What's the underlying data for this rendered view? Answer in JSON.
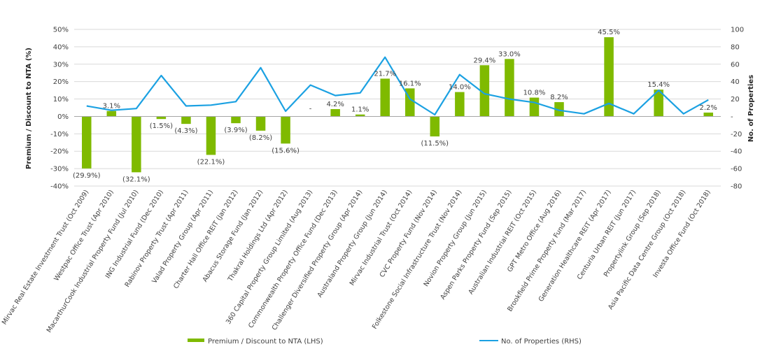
{
  "chart_data": {
    "type": "bar",
    "ylabel": "Premium / Discount to NTA (%)",
    "y2label": "No. of Properties",
    "ylim": [
      -40,
      50
    ],
    "y2lim": [
      -80,
      100
    ],
    "yticks": [
      "50%",
      "40%",
      "30%",
      "20%",
      "10%",
      "0%",
      "-10%",
      "-20%",
      "-30%",
      "-40%"
    ],
    "y2ticks": [
      "100",
      "80",
      "60",
      "40",
      "20",
      "-",
      "-20",
      "-40",
      "-60",
      "-80"
    ],
    "grid": true,
    "legend_position": "bottom",
    "colors": {
      "bar": "#7fba00",
      "line": "#1ba1e2"
    },
    "categories": [
      "Mirvac Real Estate Investment Trust (Oct 2009)",
      "Westpac Office Trust (Apr 2010)",
      "MacarthurCook Industrial Property Fund (Jul 2010)",
      "ING Industrial Fund (Dec 2010)",
      "Rabinov Property Trust (Apr 2011)",
      "Valad Property Group (Apr 2011)",
      "Charter Hall Office REIT (Jan 2012)",
      "Abacus Storage Fund (Jan 2012)",
      "Thakral Holdings Ltd (Apr 2012)",
      "360 Capital Property Group Limited (Aug 2013)",
      "Commonwealth Property Office Fund (Dec 2013)",
      "Challenger Diversified Property Group (Apr 2014)",
      "Australand Property Group (Jun 2014)",
      "Mirvac Industrial Trust (Oct 2014)",
      "CVC Property Fund (Nov 2014)",
      "Folkestone Social Infrastructure Trust (Nov 2014)",
      "Novion Property Group (Jun 2015)",
      "Aspen Parks Property Fund (Sep 2015)",
      "Australian Industrial REIT (Oct 2015)",
      "GPT Metro Office (Aug 2016)",
      "Brookfield Prime Property Fund (Mar 2017)",
      "Generation Healthcare REIT (Apr 2017)",
      "Centuria Urban REIT (Jun 2017)",
      "Propertylink Group (Sep 2018)",
      "Asia Pacific Data Centre Group (Oct 2018)",
      "Investa Office Fund (Oct 2018)"
    ],
    "series": [
      {
        "name": "Premium / Discount to NTA (LHS)",
        "type": "bar",
        "axis": "left",
        "values": [
          -29.9,
          3.1,
          -32.1,
          -1.5,
          -4.3,
          -22.1,
          -3.9,
          -8.2,
          -15.6,
          null,
          4.2,
          1.1,
          21.7,
          16.1,
          -11.5,
          14.0,
          29.4,
          33.0,
          10.8,
          8.2,
          null,
          45.5,
          null,
          15.4,
          null,
          2.2
        ],
        "labels": [
          "(29.9%)",
          "3.1%",
          "(32.1%)",
          "(1.5%)",
          "(4.3%)",
          "(22.1%)",
          "(3.9%)",
          "(8.2%)",
          "(15.6%)",
          "-",
          "4.2%",
          "1.1%",
          "21.7%",
          "16.1%",
          "(11.5%)",
          "14.0%",
          "29.4%",
          "33.0%",
          "10.8%",
          "8.2%",
          "",
          "45.5%",
          "",
          "15.4%",
          "",
          "2.2%"
        ]
      },
      {
        "name": "No. of Properties (RHS)",
        "type": "line",
        "axis": "right",
        "values": [
          12,
          7,
          9,
          47,
          12,
          13,
          17,
          56,
          6,
          36,
          24,
          27,
          68,
          20,
          2,
          48,
          26,
          20,
          16,
          7,
          3,
          15,
          3,
          30,
          3,
          19
        ]
      }
    ]
  }
}
